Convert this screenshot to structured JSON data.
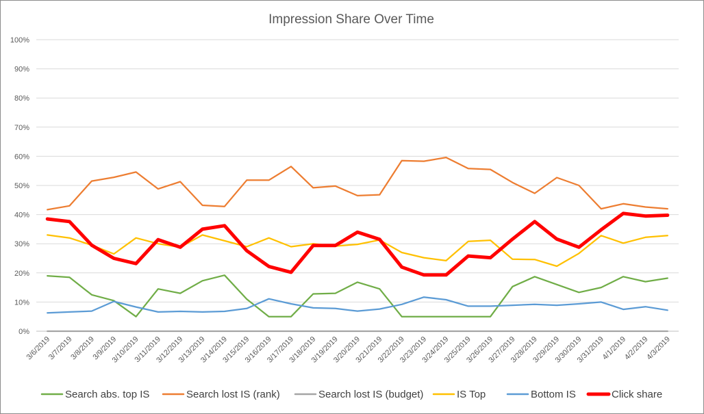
{
  "chart_data": {
    "type": "line",
    "title": "Impression Share Over Time",
    "xlabel": "",
    "ylabel": "",
    "ylim": [
      0,
      100
    ],
    "ytick_labels": [
      "0%",
      "10%",
      "20%",
      "30%",
      "40%",
      "50%",
      "60%",
      "70%",
      "80%",
      "90%",
      "100%"
    ],
    "grid": true,
    "legend_position": "bottom",
    "categories": [
      "3/6/2019",
      "3/7/2019",
      "3/8/2019",
      "3/9/2019",
      "3/10/2019",
      "3/11/2019",
      "3/12/2019",
      "3/13/2019",
      "3/14/2019",
      "3/15/2019",
      "3/16/2019",
      "3/17/2019",
      "3/18/2019",
      "3/19/2019",
      "3/20/2019",
      "3/21/2019",
      "3/22/2019",
      "3/23/2019",
      "3/24/2019",
      "3/25/2019",
      "3/26/2019",
      "3/27/2019",
      "3/28/2019",
      "3/29/2019",
      "3/30/2019",
      "3/31/2019",
      "4/1/2019",
      "4/2/2019",
      "4/3/2019"
    ],
    "series": [
      {
        "name": "Search abs. top IS",
        "color": "#70ad47",
        "values": [
          19,
          18.5,
          12.5,
          10.5,
          5,
          14.5,
          13,
          17.3,
          19.2,
          11,
          5,
          5,
          12.8,
          13,
          16.8,
          14.5,
          5,
          5,
          5,
          5,
          5,
          15.3,
          18.7,
          16,
          13.3,
          15,
          18.7,
          17,
          18.2
        ]
      },
      {
        "name": "Search lost IS (rank)",
        "color": "#ed7d31",
        "values": [
          41.7,
          43,
          51.5,
          52.8,
          54.6,
          48.8,
          51.3,
          43.2,
          42.8,
          51.8,
          51.8,
          56.5,
          49.2,
          49.8,
          46.5,
          46.8,
          58.5,
          58.3,
          59.6,
          55.8,
          55.5,
          51,
          47.3,
          52.7,
          50,
          42,
          43.7,
          42.6,
          42
        ]
      },
      {
        "name": "Search lost IS (budget)",
        "color": "#a5a5a5",
        "values": [
          0,
          0,
          0,
          0,
          0,
          0,
          0,
          0,
          0,
          0,
          0,
          0,
          0,
          0,
          0,
          0,
          0,
          0,
          0,
          0,
          0,
          0,
          0,
          0,
          0,
          0,
          0,
          0,
          0
        ]
      },
      {
        "name": "IS Top",
        "color": "#ffc000",
        "values": [
          33,
          32,
          29.5,
          26.5,
          32,
          30,
          28.8,
          33,
          31,
          29,
          32,
          29,
          30,
          29.2,
          29.8,
          31.3,
          27,
          25.2,
          24.2,
          30.8,
          31.2,
          24.7,
          24.6,
          22.3,
          26.7,
          32.8,
          30.2,
          32.2,
          32.8
        ]
      },
      {
        "name": "Bottom IS",
        "color": "#5b9bd5",
        "values": [
          6.3,
          6.6,
          6.9,
          10.2,
          8.3,
          6.6,
          6.8,
          6.6,
          6.8,
          7.8,
          11.1,
          9.4,
          8,
          7.8,
          6.9,
          7.6,
          9.2,
          11.7,
          10.8,
          8.6,
          8.6,
          8.9,
          9.2,
          8.9,
          9.4,
          10,
          7.5,
          8.4,
          7.2
        ]
      },
      {
        "name": "Click share",
        "color": "#ff0000",
        "values": [
          38.5,
          37.6,
          29.5,
          25,
          23.2,
          31.4,
          28.8,
          35,
          36.2,
          27.6,
          22.2,
          20.2,
          29.4,
          29.4,
          34,
          31.5,
          22,
          19.3,
          19.3,
          25.8,
          25.2,
          31.6,
          37.6,
          31.6,
          28.8,
          34.8,
          40.4,
          39.5,
          39.8
        ]
      }
    ]
  }
}
